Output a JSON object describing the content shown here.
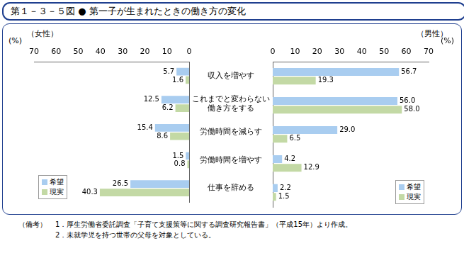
{
  "title": "第１－３－５図 ● 第一子が生まれたときの働き方の変化",
  "notes": {
    "label": "（備考）",
    "items": [
      "1．厚生労働省委託調査「子育て支援策等に関する調査研究報告書」（平成15年）より作成。",
      "2．未就学児を持つ世帯の父母を対象としている。"
    ]
  },
  "chart_data": [
    {
      "type": "bar",
      "orientation": "horizontal",
      "title": "（女性）",
      "xlabel": "(%)",
      "categories": [
        "収入を増やす",
        "これまでと変わらない\n働き方をする",
        "労働時間を減らす",
        "労働時間を増やす",
        "仕事を辞める"
      ],
      "series": [
        {
          "name": "希望",
          "color": "#a9cdf0",
          "values": [
            5.7,
            12.5,
            15.4,
            1.5,
            26.5
          ],
          "value_labels": [
            "5.7",
            "12.5",
            "15.4",
            "1.5",
            "26.5"
          ]
        },
        {
          "name": "現実",
          "color": "#c3d9a5",
          "values": [
            1.6,
            6.2,
            8.6,
            0.8,
            40.3
          ],
          "value_labels": [
            "1.6",
            "6.2",
            "8.6",
            "0.8",
            "40.3"
          ]
        }
      ],
      "xlim": [
        70,
        0
      ],
      "xticks": [
        0,
        10,
        20,
        30,
        40,
        50,
        60,
        70
      ],
      "grid": false,
      "legend": "lower left",
      "data_labels": true
    },
    {
      "type": "bar",
      "orientation": "horizontal",
      "title": "（男性）",
      "xlabel": "(%)",
      "categories": [
        "収入を増やす",
        "これまでと変わらない\n働き方をする",
        "労働時間を減らす",
        "労働時間を増やす",
        "仕事を辞める"
      ],
      "series": [
        {
          "name": "希望",
          "color": "#a9cdf0",
          "values": [
            56.7,
            56.0,
            29.0,
            4.2,
            2.2
          ],
          "value_labels": [
            "56.7",
            "56.0",
            "29.0",
            "4.2",
            "2.2"
          ]
        },
        {
          "name": "現実",
          "color": "#c3d9a5",
          "values": [
            19.3,
            58.0,
            6.5,
            12.9,
            1.5
          ],
          "value_labels": [
            "19.3",
            "58.0",
            "6.5",
            "12.9",
            "1.5"
          ]
        }
      ],
      "xlim": [
        0,
        70
      ],
      "xticks": [
        0,
        10,
        20,
        30,
        40,
        50,
        60,
        70
      ],
      "grid": false,
      "legend": "lower right",
      "data_labels": true,
      "tick_labels": "x"
    }
  ]
}
